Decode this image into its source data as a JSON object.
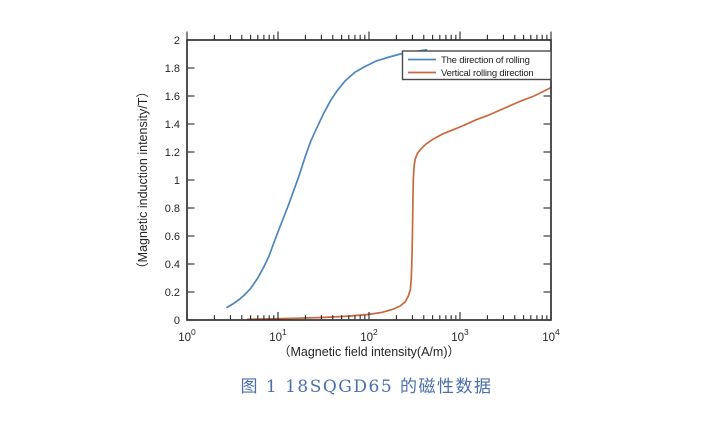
{
  "figure": {
    "caption": {
      "text": "图 1 18SQGD65 的磁性数据",
      "color": "#4a70ab"
    }
  },
  "chart_data": {
    "type": "line",
    "title": "",
    "xlabel": "（Magnetic field intensity(A/m)）",
    "ylabel": "（Magnetic induction intensity/T）",
    "x_scale": "log",
    "xlim": [
      1,
      10000
    ],
    "ylim": [
      0,
      2
    ],
    "grid": false,
    "legend_position": "upper-right",
    "axis_color": "#262626",
    "x_tick_exponents": [
      0,
      1,
      2,
      3,
      4
    ],
    "y_ticks": [
      0,
      0.2,
      0.4,
      0.6,
      0.8,
      1,
      1.2,
      1.4,
      1.6,
      1.8,
      2
    ],
    "y_tick_labels": [
      "0",
      "0.2",
      "0.4",
      "0.6",
      "0.8",
      "1",
      "1.2",
      "1.4",
      "1.6",
      "1.8",
      "2"
    ],
    "series": [
      {
        "name": "The direction of rolling",
        "color": "#4e87be",
        "points": [
          [
            2.75,
            0.09
          ],
          [
            3.2,
            0.115
          ],
          [
            3.8,
            0.15
          ],
          [
            4.3,
            0.18
          ],
          [
            5,
            0.225
          ],
          [
            6,
            0.3
          ],
          [
            7,
            0.38
          ],
          [
            8,
            0.46
          ],
          [
            9,
            0.55
          ],
          [
            10,
            0.63
          ],
          [
            11.5,
            0.73
          ],
          [
            13,
            0.82
          ],
          [
            15,
            0.93
          ],
          [
            17,
            1.03
          ],
          [
            20,
            1.17
          ],
          [
            23,
            1.28
          ],
          [
            27,
            1.38
          ],
          [
            32,
            1.48
          ],
          [
            38,
            1.57
          ],
          [
            45,
            1.64
          ],
          [
            55,
            1.71
          ],
          [
            70,
            1.77
          ],
          [
            90,
            1.81
          ],
          [
            120,
            1.85
          ],
          [
            160,
            1.875
          ],
          [
            220,
            1.9
          ],
          [
            300,
            1.915
          ],
          [
            430,
            1.93
          ]
        ]
      },
      {
        "name": "Vertical rolling direction",
        "color": "#c8693f",
        "points": [
          [
            4.6,
            0.005
          ],
          [
            8,
            0.008
          ],
          [
            15,
            0.012
          ],
          [
            30,
            0.018
          ],
          [
            60,
            0.028
          ],
          [
            100,
            0.04
          ],
          [
            140,
            0.055
          ],
          [
            180,
            0.075
          ],
          [
            220,
            0.1
          ],
          [
            250,
            0.13
          ],
          [
            270,
            0.17
          ],
          [
            285,
            0.22
          ],
          [
            292,
            0.3
          ],
          [
            297,
            0.45
          ],
          [
            300,
            0.6
          ],
          [
            303,
            0.8
          ],
          [
            307,
            1.0
          ],
          [
            313,
            1.1
          ],
          [
            322,
            1.15
          ],
          [
            340,
            1.19
          ],
          [
            370,
            1.22
          ],
          [
            420,
            1.255
          ],
          [
            500,
            1.29
          ],
          [
            650,
            1.33
          ],
          [
            850,
            1.36
          ],
          [
            1100,
            1.39
          ],
          [
            1500,
            1.43
          ],
          [
            2000,
            1.46
          ],
          [
            3000,
            1.51
          ],
          [
            4500,
            1.56
          ],
          [
            6500,
            1.6
          ],
          [
            10000,
            1.66
          ]
        ]
      }
    ]
  }
}
